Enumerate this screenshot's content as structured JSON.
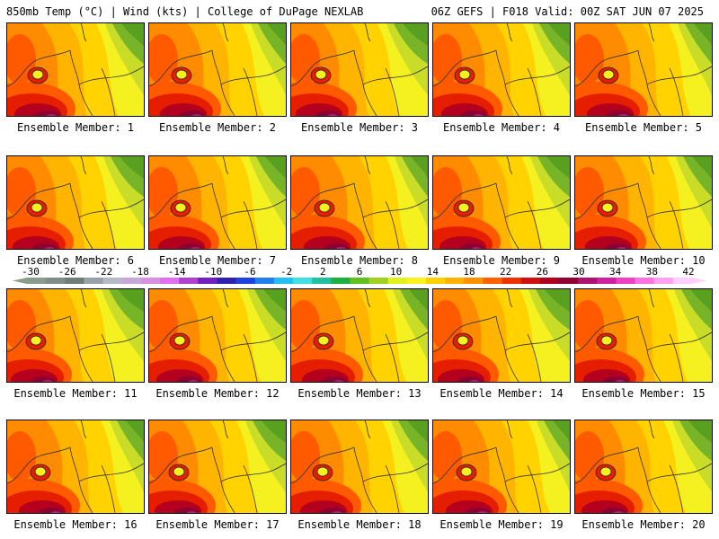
{
  "header": {
    "left": "850mb Temp (°C) | Wind (kts) | College of DuPage NEXLAB",
    "right": "06Z GEFS | F018 Valid: 00Z SAT JUN 07 2025"
  },
  "panel_label_prefix": "Ensemble Member: ",
  "members": [
    1,
    2,
    3,
    4,
    5,
    6,
    7,
    8,
    9,
    10,
    11,
    12,
    13,
    14,
    15,
    16,
    17,
    18,
    19,
    20
  ],
  "colorbar": {
    "ticks": [
      "-30",
      "-26",
      "-22",
      "-18",
      "-14",
      "-10",
      "-6",
      "-2",
      "2",
      "6",
      "10",
      "14",
      "18",
      "22",
      "26",
      "30",
      "34",
      "38",
      "42"
    ],
    "colors": [
      "#8c9c8c",
      "#7f8d86",
      "#6e7d78",
      "#9aa0a8",
      "#b4b8c8",
      "#c8a8d8",
      "#d890e0",
      "#e070f0",
      "#b040d0",
      "#7020c0",
      "#3020b0",
      "#2040e0",
      "#2080f0",
      "#20c0f0",
      "#40e0e0",
      "#20c0a0",
      "#20b040",
      "#60c020",
      "#a0d020",
      "#e0f020",
      "#fff020",
      "#ffd000",
      "#ffb000",
      "#ff9000",
      "#ff6000",
      "#f03000",
      "#d01010",
      "#b00020",
      "#900030",
      "#b01070",
      "#d020a0",
      "#f040c0",
      "#ff70e0",
      "#ffa0f0",
      "#ffd0ff"
    ]
  },
  "field_colors": {
    "green_dark": "#5aa020",
    "green": "#78b428",
    "yellow_green": "#c8dc28",
    "yellow": "#f5f020",
    "gold": "#ffd200",
    "orange_light": "#ffb400",
    "orange": "#ff8c00",
    "orange_red": "#ff5a00",
    "red": "#e61e00",
    "dark_red": "#b4001e",
    "maroon": "#8c0032",
    "magenta": "#b41e78"
  }
}
